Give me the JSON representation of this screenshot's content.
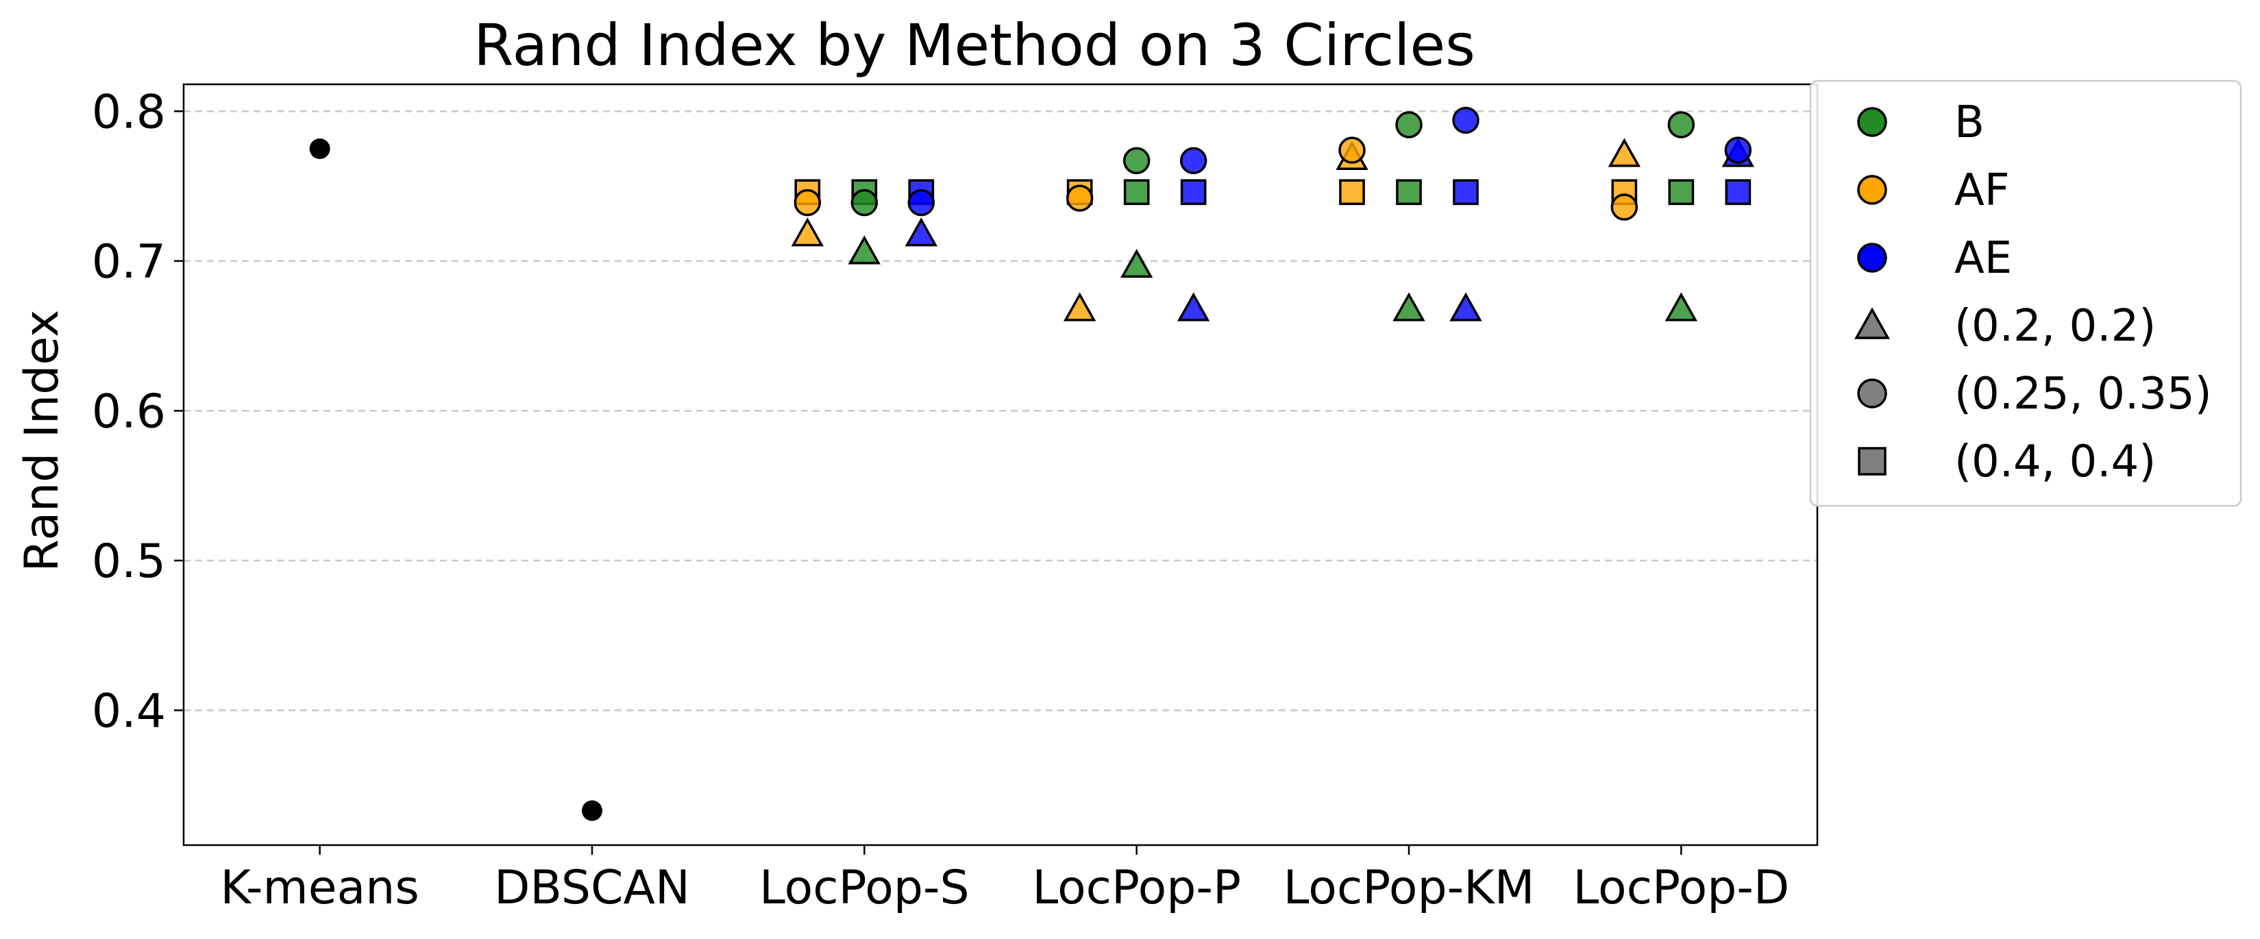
{
  "chart_data": {
    "type": "scatter",
    "title": "Rand Index by Method on 3 Circles",
    "xlabel": "",
    "ylabel": "Rand Index",
    "categories": [
      "K-means",
      "DBSCAN",
      "LocPop-S",
      "LocPop-P",
      "LocPop-KM",
      "LocPop-D"
    ],
    "ylim": [
      0.31,
      0.818
    ],
    "yticks": [
      "0.4",
      "0.5",
      "0.6",
      "0.7",
      "0.8"
    ],
    "grid": "horizontal dashed",
    "legend_position": "outside upper-right",
    "colors": {
      "B": "#228B22",
      "AF": "#FFA500",
      "AE": "#0000FF",
      "baseline": "#000000",
      "legend_marker": "#808080"
    },
    "legend": [
      {
        "label": "B",
        "marker": "circle",
        "color": "#228B22"
      },
      {
        "label": "AF",
        "marker": "circle",
        "color": "#FFA500"
      },
      {
        "label": "AE",
        "marker": "circle",
        "color": "#0000FF"
      },
      {
        "label": "(0.2, 0.2)",
        "marker": "triangle",
        "color": "#808080"
      },
      {
        "label": "(0.25, 0.35)",
        "marker": "circle",
        "color": "#808080"
      },
      {
        "label": "(0.4, 0.4)",
        "marker": "square",
        "color": "#808080"
      }
    ],
    "baselines": [
      {
        "method": "K-means",
        "y": 0.775
      },
      {
        "method": "DBSCAN",
        "y": 0.333
      }
    ],
    "points": [
      {
        "method": "LocPop-S",
        "group": "AF",
        "marker": "square",
        "y": 0.746
      },
      {
        "method": "LocPop-S",
        "group": "AF",
        "marker": "circle",
        "y": 0.739
      },
      {
        "method": "LocPop-S",
        "group": "AF",
        "marker": "triangle",
        "y": 0.718
      },
      {
        "method": "LocPop-S",
        "group": "B",
        "marker": "square",
        "y": 0.746
      },
      {
        "method": "LocPop-S",
        "group": "B",
        "marker": "circle",
        "y": 0.739
      },
      {
        "method": "LocPop-S",
        "group": "B",
        "marker": "triangle",
        "y": 0.706
      },
      {
        "method": "LocPop-S",
        "group": "AE",
        "marker": "square",
        "y": 0.746
      },
      {
        "method": "LocPop-S",
        "group": "AE",
        "marker": "circle",
        "y": 0.739
      },
      {
        "method": "LocPop-S",
        "group": "AE",
        "marker": "triangle",
        "y": 0.718
      },
      {
        "method": "LocPop-P",
        "group": "AF",
        "marker": "square",
        "y": 0.746
      },
      {
        "method": "LocPop-P",
        "group": "AF",
        "marker": "circle",
        "y": 0.742
      },
      {
        "method": "LocPop-P",
        "group": "AF",
        "marker": "triangle",
        "y": 0.668
      },
      {
        "method": "LocPop-P",
        "group": "B",
        "marker": "circle",
        "y": 0.767
      },
      {
        "method": "LocPop-P",
        "group": "B",
        "marker": "square",
        "y": 0.746
      },
      {
        "method": "LocPop-P",
        "group": "B",
        "marker": "triangle",
        "y": 0.697
      },
      {
        "method": "LocPop-P",
        "group": "AE",
        "marker": "circle",
        "y": 0.767
      },
      {
        "method": "LocPop-P",
        "group": "AE",
        "marker": "square",
        "y": 0.746
      },
      {
        "method": "LocPop-P",
        "group": "AE",
        "marker": "triangle",
        "y": 0.668
      },
      {
        "method": "LocPop-KM",
        "group": "AF",
        "marker": "triangle",
        "y": 0.769
      },
      {
        "method": "LocPop-KM",
        "group": "AF",
        "marker": "circle",
        "y": 0.774
      },
      {
        "method": "LocPop-KM",
        "group": "AF",
        "marker": "square",
        "y": 0.746
      },
      {
        "method": "LocPop-KM",
        "group": "B",
        "marker": "circle",
        "y": 0.791
      },
      {
        "method": "LocPop-KM",
        "group": "B",
        "marker": "square",
        "y": 0.746
      },
      {
        "method": "LocPop-KM",
        "group": "B",
        "marker": "triangle",
        "y": 0.668
      },
      {
        "method": "LocPop-KM",
        "group": "AE",
        "marker": "circle",
        "y": 0.794
      },
      {
        "method": "LocPop-KM",
        "group": "AE",
        "marker": "square",
        "y": 0.746
      },
      {
        "method": "LocPop-KM",
        "group": "AE",
        "marker": "triangle",
        "y": 0.668
      },
      {
        "method": "LocPop-D",
        "group": "AF",
        "marker": "triangle",
        "y": 0.771
      },
      {
        "method": "LocPop-D",
        "group": "AF",
        "marker": "square",
        "y": 0.746
      },
      {
        "method": "LocPop-D",
        "group": "AF",
        "marker": "circle",
        "y": 0.736
      },
      {
        "method": "LocPop-D",
        "group": "B",
        "marker": "circle",
        "y": 0.791
      },
      {
        "method": "LocPop-D",
        "group": "B",
        "marker": "square",
        "y": 0.746
      },
      {
        "method": "LocPop-D",
        "group": "B",
        "marker": "triangle",
        "y": 0.668
      },
      {
        "method": "LocPop-D",
        "group": "AE",
        "marker": "triangle",
        "y": 0.771
      },
      {
        "method": "LocPop-D",
        "group": "AE",
        "marker": "circle",
        "y": 0.774
      },
      {
        "method": "LocPop-D",
        "group": "AE",
        "marker": "square",
        "y": 0.746
      }
    ]
  }
}
